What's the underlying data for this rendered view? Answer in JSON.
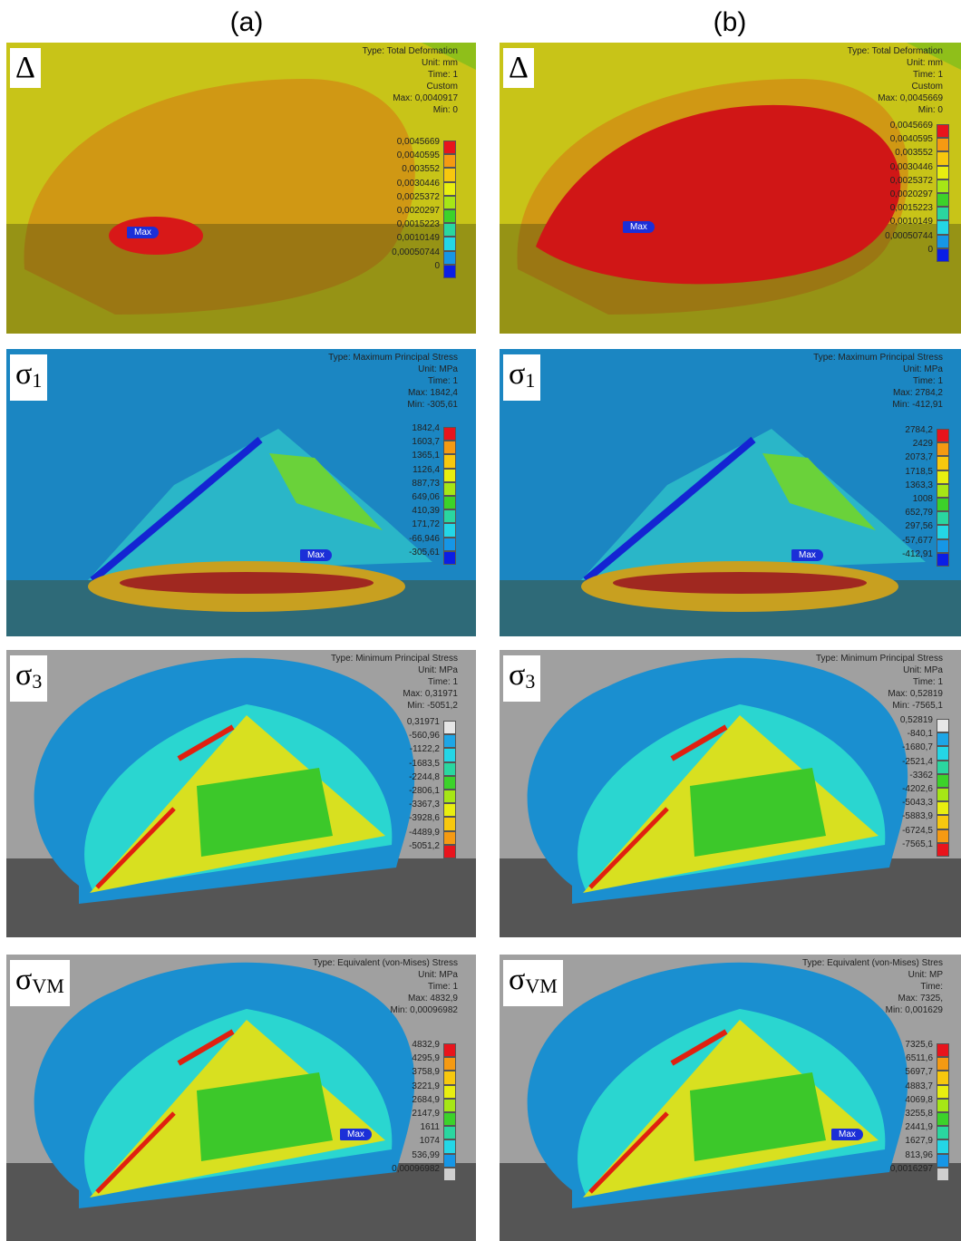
{
  "columns": [
    {
      "label": "(a)",
      "panels": [
        {
          "symbol": "Δ",
          "info": [
            "Type: Total Deformation",
            "Unit: mm",
            "Time: 1",
            "Custom",
            "Max: 0,0040917",
            "Min: 0"
          ],
          "legend": [
            "0,0045669",
            "0,0040595",
            "0,003552",
            "0,0030446",
            "0,0025372",
            "0,0020297",
            "0,0015223",
            "0,0010149",
            "0,00050744",
            "0"
          ],
          "max_tag": "Max"
        },
        {
          "symbol": "σ",
          "subscript": "1",
          "info": [
            "Type: Maximum Principal Stress",
            "Unit: MPa",
            "Time: 1",
            "Max: 1842,4",
            "Min: -305,61"
          ],
          "legend": [
            "1842,4",
            "1603,7",
            "1365,1",
            "1126,4",
            "887,73",
            "649,06",
            "410,39",
            "171,72",
            "-66,946",
            "-305,61"
          ],
          "max_tag": "Max"
        },
        {
          "symbol": "σ",
          "subscript": "3",
          "info": [
            "Type: Minimum Principal Stress",
            "Unit: MPa",
            "Time: 1",
            "Max: 0,31971",
            "Min: -5051,2"
          ],
          "legend": [
            "0,31971",
            "-560,96",
            "-1122,2",
            "-1683,5",
            "-2244,8",
            "-2806,1",
            "-3367,3",
            "-3928,6",
            "-4489,9",
            "-5051,2"
          ]
        },
        {
          "symbol": "σ",
          "subscript": "VM",
          "info": [
            "Type: Equivalent (von-Mises) Stress",
            "Unit: MPa",
            "Time: 1",
            "Max: 4832,9",
            "Min: 0,00096982"
          ],
          "legend": [
            "4832,9",
            "4295,9",
            "3758,9",
            "3221,9",
            "2684,9",
            "2147,9",
            "1611",
            "1074",
            "536,99",
            "0,00096982"
          ],
          "max_tag": "Max"
        }
      ]
    },
    {
      "label": "(b)",
      "panels": [
        {
          "symbol": "Δ",
          "info": [
            "Type: Total Deformation",
            "Unit: mm",
            "Time: 1",
            "Custom",
            "Max: 0,0045669",
            "Min: 0"
          ],
          "legend": [
            "0,0045669",
            "0,0040595",
            "0,003552",
            "0,0030446",
            "0,0025372",
            "0,0020297",
            "0,0015223",
            "0,0010149",
            "0,00050744",
            "0"
          ],
          "max_tag": "Max"
        },
        {
          "symbol": "σ",
          "subscript": "1",
          "info": [
            "Type: Maximum Principal Stress",
            "Unit: MPa",
            "Time: 1",
            "Max: 2784,2",
            "Min: -412,91"
          ],
          "legend": [
            "2784,2",
            "2429",
            "2073,7",
            "1718,5",
            "1363,3",
            "1008",
            "652,79",
            "297,56",
            "-57,677",
            "-412,91"
          ],
          "max_tag": "Max"
        },
        {
          "symbol": "σ",
          "subscript": "3",
          "info": [
            "Type: Minimum Principal Stress",
            "Unit: MPa",
            "Time: 1",
            "Max: 0,52819",
            "Min: -7565,1"
          ],
          "legend": [
            "0,52819",
            "-840,1",
            "-1680,7",
            "-2521,4",
            "-3362",
            "-4202,6",
            "-5043,3",
            "-5883,9",
            "-6724,5",
            "-7565,1"
          ]
        },
        {
          "symbol": "σ",
          "subscript": "VM",
          "info": [
            "Type: Equivalent (von-Mises) Stres",
            "Unit: MP",
            "Time:",
            "Max: 7325,",
            "Min: 0,001629"
          ],
          "legend": [
            "7325,6",
            "6511,6",
            "5697,7",
            "4883,7",
            "4069,8",
            "3255,8",
            "2441,9",
            "1627,9",
            "813,96",
            "0,0016297"
          ],
          "max_tag": "Max"
        }
      ]
    }
  ]
}
